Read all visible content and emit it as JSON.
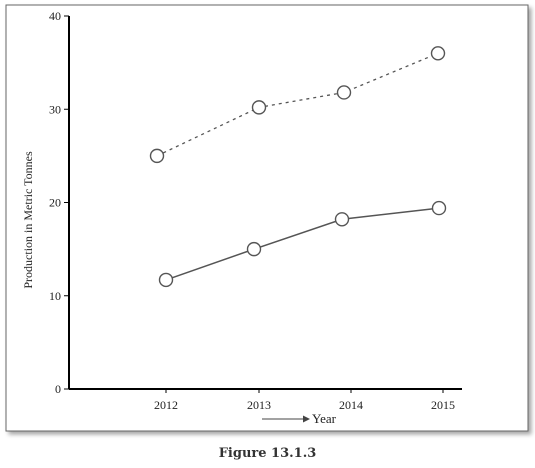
{
  "caption": "Figure 13.1.3",
  "chart_data": {
    "type": "line",
    "xlabel": "Year",
    "ylabel": "Production in Metric Tonnes",
    "categories": [
      "2012",
      "2013",
      "2014",
      "2015"
    ],
    "ylim": [
      0,
      40
    ],
    "yticks": [
      "0",
      "10",
      "20",
      "30",
      "40"
    ],
    "grid": false,
    "legend": "none",
    "series": [
      {
        "style": "dashed",
        "values": [
          25,
          30.2,
          31.8,
          36
        ]
      },
      {
        "style": "solid",
        "values": [
          11.7,
          15,
          18.2,
          19.4
        ]
      }
    ],
    "colors": {
      "line": "#555555",
      "marker_fill": "#ffffff",
      "axis": "#000000",
      "frame": "#555555"
    }
  }
}
